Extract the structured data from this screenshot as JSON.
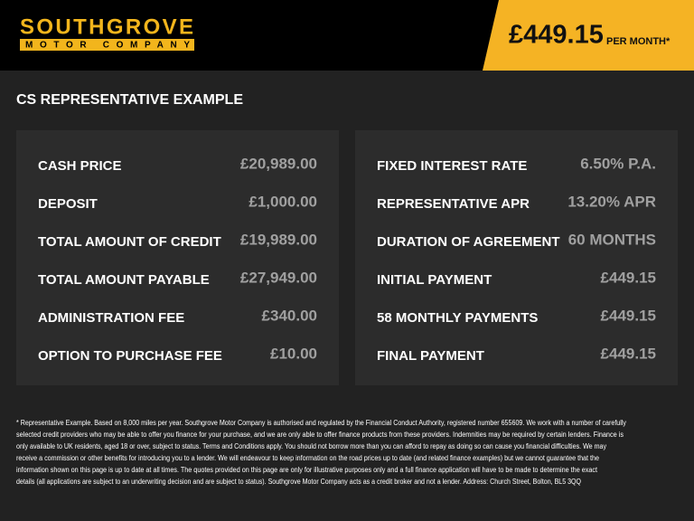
{
  "header": {
    "brand": "SOUTHGROVE",
    "brand_sub": "MOTOR COMPANY",
    "price": "£449.15",
    "price_suffix": "PER MONTH*"
  },
  "section_title": "CS REPRESENTATIVE EXAMPLE",
  "left_panel": {
    "rows": [
      [
        "CASH PRICE",
        "£20,989.00"
      ],
      [
        "DEPOSIT",
        "£1,000.00"
      ],
      [
        "TOTAL AMOUNT OF CREDIT",
        "£19,989.00"
      ],
      [
        "TOTAL AMOUNT PAYABLE",
        "£27,949.00"
      ],
      [
        "ADMINISTRATION FEE",
        "£340.00"
      ],
      [
        "OPTION TO PURCHASE FEE",
        "£10.00"
      ]
    ]
  },
  "right_panel": {
    "rows": [
      [
        "FIXED INTEREST RATE",
        "6.50% P.A."
      ],
      [
        "REPRESENTATIVE APR",
        "13.20% APR"
      ],
      [
        "DURATION OF AGREEMENT",
        "60 MONTHS"
      ],
      [
        "INITIAL PAYMENT",
        "£449.15"
      ],
      [
        "58 MONTHLY PAYMENTS",
        "£449.15"
      ],
      [
        "FINAL PAYMENT",
        "£449.15"
      ]
    ]
  },
  "footnote": {
    "lines": [
      "* Representative Example. Based on 8,000 miles per year. Southgrove Motor Company is authorised and regulated by the Financial Conduct Authority, registered number 655609. We work with a number of carefully",
      "selected credit providers who may be able to offer you finance for your purchase, and we are only able to offer finance products from these providers. Indemnities may be required by certain lenders. Finance is",
      "only available to UK residents, aged 18 or over, subject to status. Terms and Conditions apply. You should not borrow more than you can afford to repay as doing so can cause you financial difficulties. We may",
      "receive a commission or other benefits for introducing you to a lender. We will endeavour to keep information on the road prices up to date (and related finance examples) but we cannot guarantee that the",
      "information shown on this page is up to date at all times. The quotes provided on this page are only for illustrative purposes only and a full finance application will have to be made to determine the exact",
      "details (all applications are subject to an underwriting decision and are subject to status). Southgrove Motor Company acts as a credit broker and not a lender. Address: Church Street, Bolton, BL5 3QQ"
    ]
  }
}
